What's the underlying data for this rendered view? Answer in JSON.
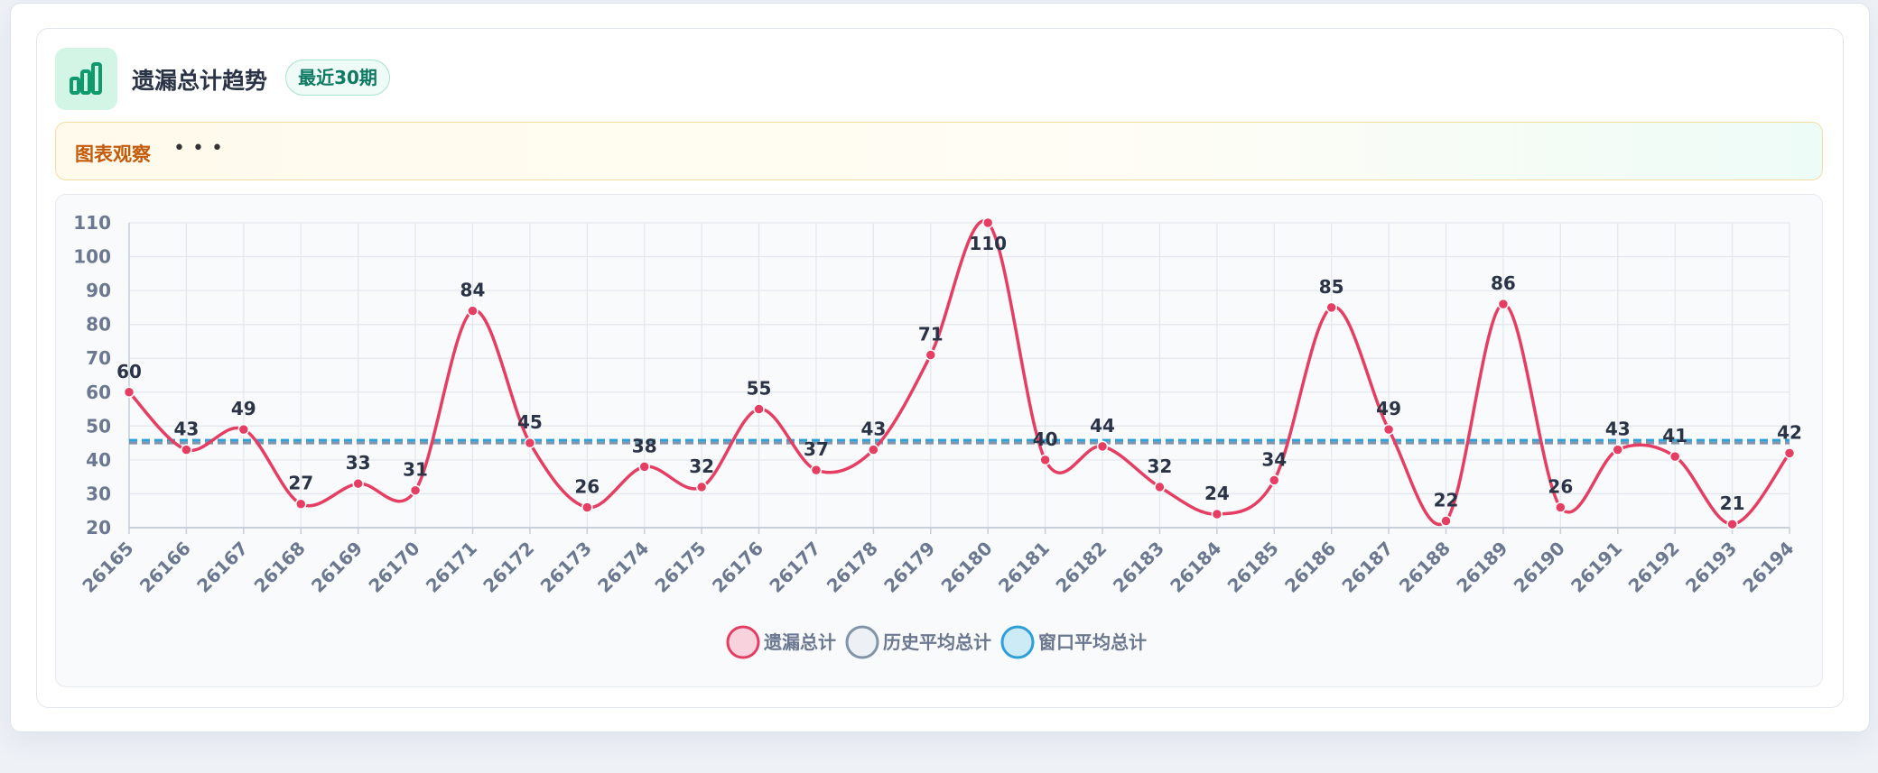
{
  "header": {
    "title": "遗漏总计趋势",
    "badge": "最近30期",
    "observation": "图表观察"
  },
  "chart_data": {
    "type": "line",
    "categories": [
      "26165",
      "26166",
      "26167",
      "26168",
      "26169",
      "26170",
      "26171",
      "26172",
      "26173",
      "26174",
      "26175",
      "26176",
      "26177",
      "26178",
      "26179",
      "26180",
      "26181",
      "26182",
      "26183",
      "26184",
      "26185",
      "26186",
      "26187",
      "26188",
      "26189",
      "26190",
      "26191",
      "26192",
      "26193",
      "26194"
    ],
    "series": [
      {
        "name": "遗漏总计",
        "color": "#e63e62",
        "values": [
          60,
          43,
          49,
          27,
          33,
          31,
          84,
          45,
          26,
          38,
          32,
          55,
          37,
          43,
          71,
          110,
          40,
          44,
          32,
          24,
          34,
          85,
          49,
          22,
          86,
          26,
          43,
          41,
          21,
          42
        ]
      },
      {
        "name": "历史平均总计",
        "color": "#8393a8",
        "values": [
          45,
          45,
          45,
          45,
          45,
          45,
          45,
          45,
          45,
          45,
          45,
          45,
          45,
          45,
          45,
          45,
          45,
          45,
          45,
          45,
          45,
          45,
          45,
          45,
          45,
          45,
          45,
          45,
          45,
          45
        ]
      },
      {
        "name": "窗口平均总计",
        "color": "#2e9fd8",
        "values": [
          45.8,
          45.8,
          45.8,
          45.8,
          45.8,
          45.8,
          45.8,
          45.8,
          45.8,
          45.8,
          45.8,
          45.8,
          45.8,
          45.8,
          45.8,
          45.8,
          45.8,
          45.8,
          45.8,
          45.8,
          45.8,
          45.8,
          45.8,
          45.8,
          45.8,
          45.8,
          45.8,
          45.8,
          45.8,
          45.8
        ]
      }
    ],
    "ylim": [
      20,
      110
    ],
    "yticks": [
      20,
      30,
      40,
      50,
      60,
      70,
      80,
      90,
      100,
      110
    ],
    "grid": true
  }
}
